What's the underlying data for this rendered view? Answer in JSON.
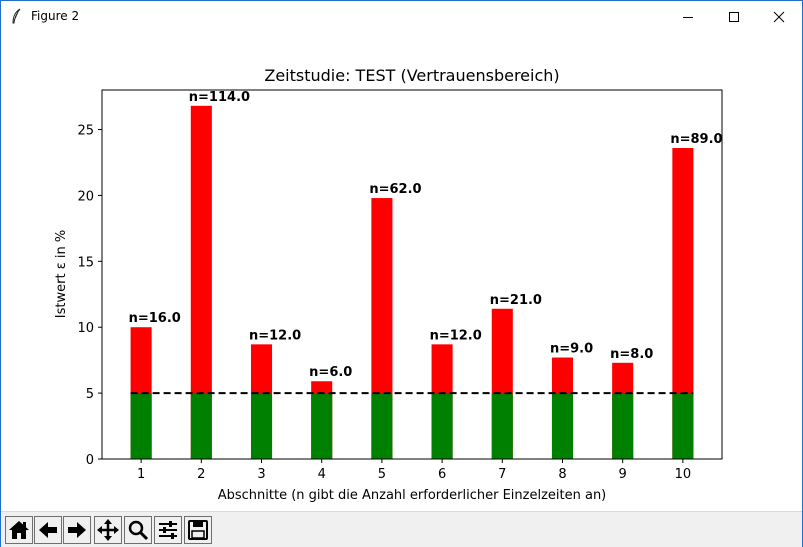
{
  "window": {
    "title": "Figure 2",
    "icons": [
      "feather-icon",
      "minimize-icon",
      "maximize-icon",
      "close-icon"
    ]
  },
  "toolbar": {
    "buttons": [
      {
        "name": "home-button",
        "icon": "home-icon"
      },
      {
        "name": "back-button",
        "icon": "arrow-left-icon"
      },
      {
        "name": "forward-button",
        "icon": "arrow-right-icon"
      },
      {
        "name": "pan-button",
        "icon": "move-icon"
      },
      {
        "name": "zoom-button",
        "icon": "magnifier-icon"
      },
      {
        "name": "configure-subplots-button",
        "icon": "sliders-icon"
      },
      {
        "name": "save-button",
        "icon": "floppy-disk-icon"
      }
    ]
  },
  "chart_data": {
    "type": "bar",
    "title": "Zeitstudie: TEST (Vertrauensbereich)",
    "xlabel": "Abschnitte (n gibt die Anzahl erforderlicher Einzelzeiten an)",
    "ylabel": "Istwert ε in %",
    "categories": [
      "1",
      "2",
      "3",
      "4",
      "5",
      "6",
      "7",
      "8",
      "9",
      "10"
    ],
    "series": [
      {
        "color": "#008000",
        "values": [
          5,
          5,
          5,
          5,
          5,
          5,
          5,
          5,
          5,
          5
        ]
      },
      {
        "color": "#ff0000",
        "values": [
          10.0,
          26.8,
          8.7,
          5.9,
          19.8,
          8.7,
          11.4,
          7.7,
          7.3,
          23.6
        ]
      }
    ],
    "bar_labels": [
      "n=16.0",
      "n=114.0",
      "n=12.0",
      "n=6.0",
      "n=62.0",
      "n=12.0",
      "n=21.0",
      "n=9.0",
      "n=8.0",
      "n=89.0"
    ],
    "threshold": 5,
    "threshold_style": "dashed black line",
    "yticks": [
      0,
      5,
      10,
      15,
      20,
      25
    ],
    "ylim": [
      0,
      28
    ],
    "xlim": [
      0.35,
      10.65
    ],
    "grid": false,
    "legend": "none"
  }
}
